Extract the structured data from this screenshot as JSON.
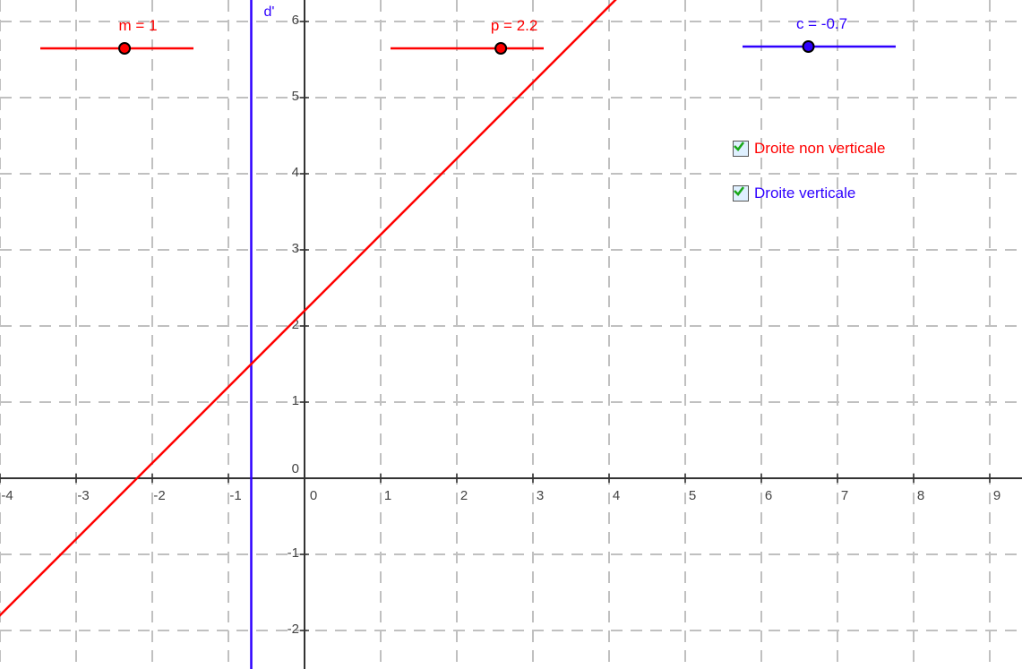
{
  "graph": {
    "x_axis": {
      "min": -4,
      "max": 9.4,
      "ticks": [
        -4,
        -3,
        -2,
        -1,
        0,
        1,
        2,
        3,
        4,
        5,
        6,
        7,
        8,
        9
      ]
    },
    "y_axis": {
      "min": -2.5,
      "max": 6.2,
      "ticks": [
        -2,
        -1,
        0,
        1,
        2,
        3,
        4,
        5,
        6
      ]
    },
    "grid": true,
    "colors": {
      "grid": "#c0c0c0",
      "axis": "#333333",
      "red": "#ff0000",
      "blue": "#2e00ff"
    }
  },
  "lines": [
    {
      "name": "d'",
      "type": "vertical",
      "x": -0.7,
      "color": "#2e00ff",
      "label": "d'"
    },
    {
      "name": "d",
      "type": "linear",
      "slope": 1,
      "intercept": 2.2,
      "color": "#ff0000"
    }
  ],
  "sliders": [
    {
      "name": "m",
      "label": "m = 1",
      "value": 1,
      "position_fraction": 0.55,
      "color": "#ff0000"
    },
    {
      "name": "p",
      "label": "p = 2.2",
      "value": 2.2,
      "position_fraction": 0.72,
      "color": "#ff0000"
    },
    {
      "name": "c",
      "label": "c = -0.7",
      "value": -0.7,
      "position_fraction": 0.43,
      "color": "#2e00ff"
    }
  ],
  "checkboxes": [
    {
      "label": "Droite non verticale",
      "checked": true,
      "color": "#ff0000"
    },
    {
      "label": "Droite verticale",
      "checked": true,
      "color": "#2e00ff"
    }
  ]
}
